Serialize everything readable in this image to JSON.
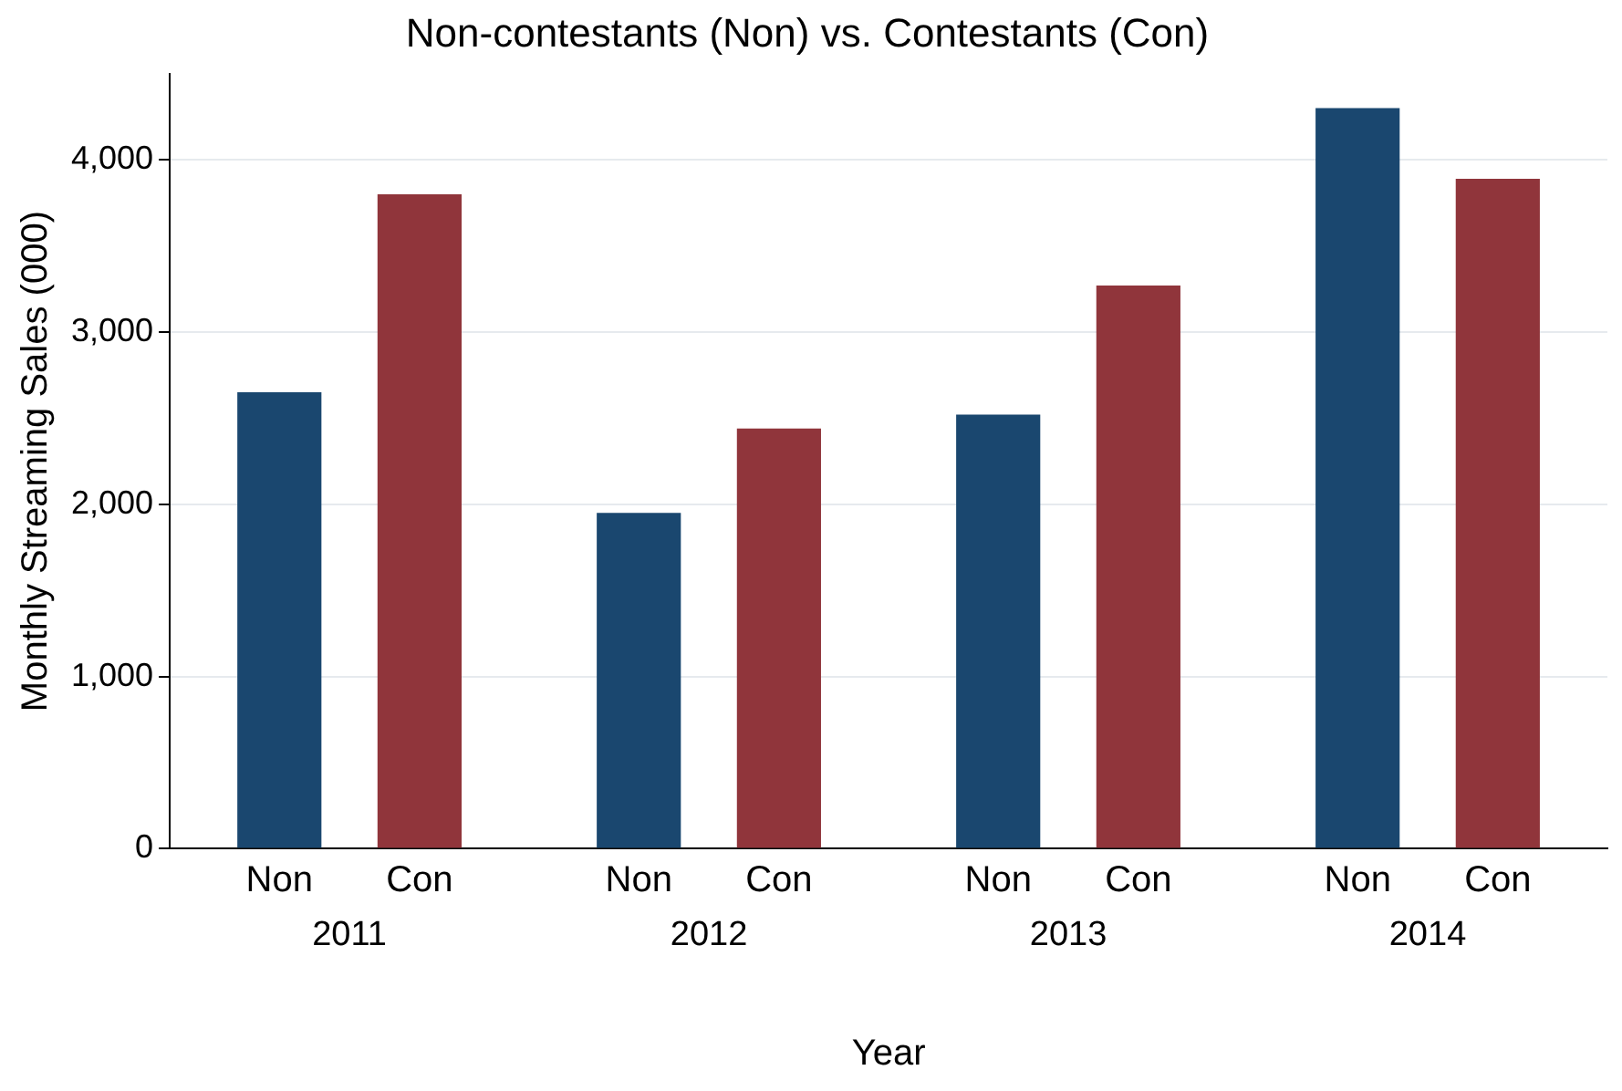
{
  "chart_data": {
    "type": "bar",
    "title": "Non-contestants (Non) vs. Contestants (Con)",
    "xlabel": "Year",
    "ylabel": "Monthly Streaming Sales (000)",
    "categories": [
      "2011",
      "2012",
      "2013",
      "2014"
    ],
    "series": [
      {
        "name": "Non",
        "color": "#1a476f",
        "values": [
          2650,
          1950,
          2520,
          4300
        ]
      },
      {
        "name": "Con",
        "color": "#90353b",
        "values": [
          3800,
          2440,
          3270,
          3890
        ]
      }
    ],
    "ylim": [
      0,
      4500
    ],
    "yticks": [
      {
        "value": 0,
        "label": "0"
      },
      {
        "value": 1000,
        "label": "1,000"
      },
      {
        "value": 2000,
        "label": "2,000"
      },
      {
        "value": 3000,
        "label": "3,000"
      },
      {
        "value": 4000,
        "label": "4,000"
      }
    ],
    "grid": "y",
    "legend": false
  }
}
